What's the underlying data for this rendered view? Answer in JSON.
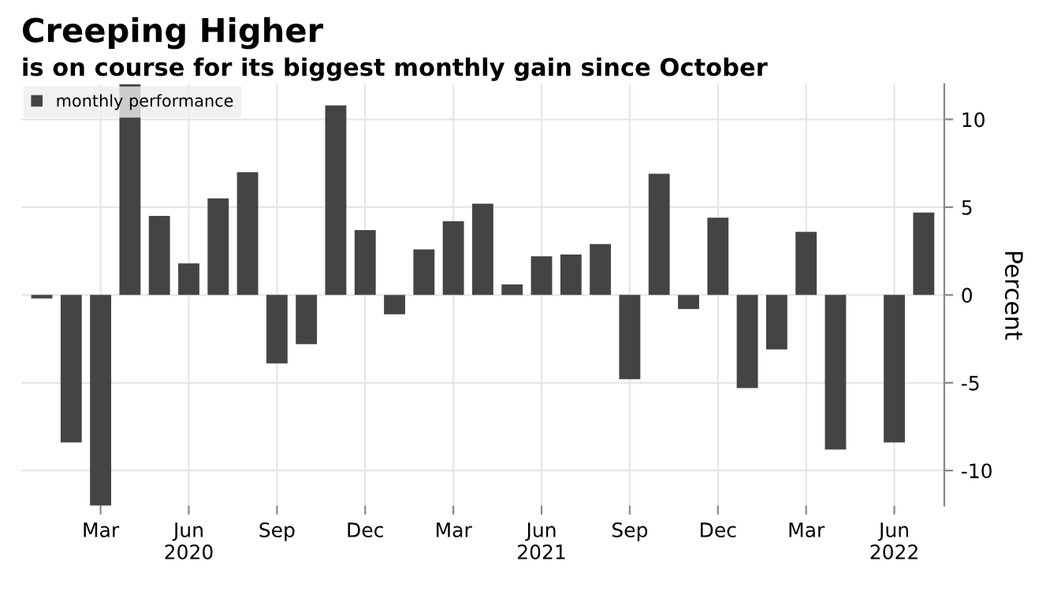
{
  "chart_data": {
    "type": "bar",
    "title": "Creeping Higher",
    "subtitle": "is on course for its biggest monthly gain since October",
    "categories": [
      null,
      null,
      "Mar",
      null,
      null,
      "Jun\n2020",
      null,
      null,
      "Sep",
      null,
      null,
      "Dec",
      null,
      null,
      "Mar",
      null,
      null,
      "Jun\n2021",
      null,
      null,
      "Sep",
      null,
      null,
      "Dec",
      null,
      null,
      "Mar",
      null,
      null,
      "Jun\n2022",
      null
    ],
    "series": [
      {
        "name": "monthly performance",
        "color": "#444444",
        "values": [
          -0.2,
          -8.4,
          -12,
          12,
          4.5,
          1.8,
          5.5,
          7.0,
          -3.9,
          -2.8,
          10.8,
          3.7,
          -1.1,
          2.6,
          4.2,
          5.2,
          0.6,
          2.2,
          2.3,
          2.9,
          -4.8,
          6.9,
          -0.8,
          4.4,
          -5.3,
          -3.1,
          3.6,
          -8.8,
          0.0,
          -8.4,
          4.7
        ]
      }
    ],
    "ylabel": "Percent",
    "ylim": [
      -12,
      12
    ],
    "yticks": [
      -10,
      -5,
      0,
      5,
      10
    ],
    "grid": true,
    "legend": "top left"
  }
}
